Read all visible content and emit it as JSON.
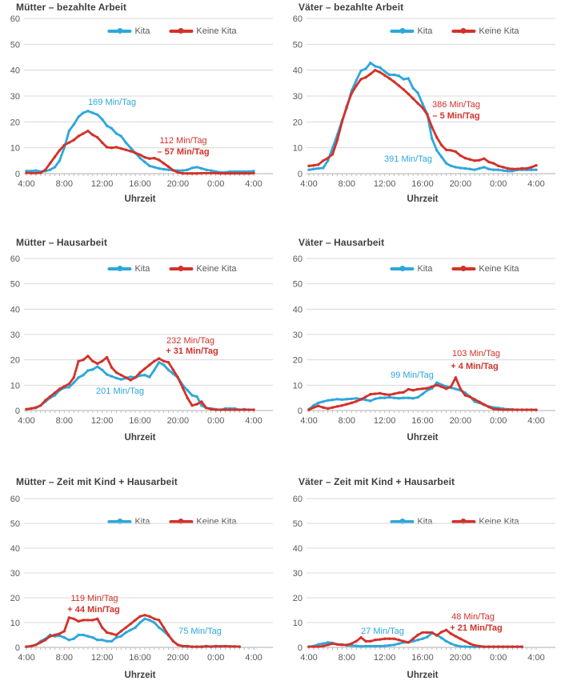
{
  "page": {
    "background": "#ffffff"
  },
  "colors": {
    "kita": "#2EA7DB",
    "keine_kita": "#D2322A",
    "gridline": "#D8D8D8",
    "axis_line": "#AFAFAF",
    "tick": "#BFBFBF",
    "label_text": "#595959",
    "title_text": "#3F3F3F"
  },
  "legend": {
    "kita": "Kita",
    "keine_kita": "Keine Kita"
  },
  "axis": {
    "x_label": "Uhrzeit",
    "x_tick_labels": [
      "4:00",
      "8:00",
      "12:00",
      "16:00",
      "20:00",
      "0:00",
      "4:00"
    ],
    "y_ticks": [
      0,
      10,
      20,
      30,
      40,
      50,
      60
    ],
    "y_max": 60,
    "x_points_per_label": 8,
    "x_resolution": "30min"
  },
  "chart_data": [
    {
      "type": "line",
      "title": "Mütter – bezahlte Arbeit",
      "ylim": [
        0,
        60
      ],
      "x_start": "4:00",
      "x_end": "4:00",
      "annotations": {
        "kita_total": "169 Min/Tag",
        "keine_kita_total": "112 Min/Tag",
        "difference": "– 57 Min/Tag"
      },
      "series": [
        {
          "name": "Kita",
          "color_key": "kita",
          "values": [
            1,
            1,
            1.2,
            0.8,
            1,
            1.5,
            2.5,
            5,
            10,
            16.5,
            19,
            22,
            23.5,
            24.2,
            23.5,
            22.8,
            21,
            18.5,
            17.5,
            15.5,
            14.5,
            12,
            10,
            8,
            6,
            4.5,
            3,
            2.5,
            2,
            1.7,
            1.5,
            1.3,
            1.2,
            1.2,
            1.5,
            2.2,
            2.5,
            2,
            1.5,
            1.2,
            0.8,
            0.5,
            0.5,
            0.8,
            0.8,
            0.8,
            0.8,
            0.8,
            1
          ]
        },
        {
          "name": "Keine Kita",
          "color_key": "keine_kita",
          "values": [
            0.3,
            0.2,
            0.2,
            0.3,
            1.5,
            4,
            6.5,
            9,
            11,
            12,
            13,
            14.5,
            15.5,
            16.5,
            15,
            14,
            12,
            10.2,
            10,
            10.2,
            9.7,
            9.2,
            8.7,
            8,
            7.3,
            6.3,
            5.8,
            6,
            5.3,
            4,
            2.7,
            1.3,
            0.5,
            0.1,
            0.1,
            0.1,
            0.1,
            0.2,
            0.2,
            0.2,
            0.2,
            0.1,
            0.1,
            0.1,
            0.1,
            0.1,
            0.1,
            0.1,
            0.2
          ]
        }
      ]
    },
    {
      "type": "line",
      "title": "Väter – bezahlte Arbeit",
      "ylim": [
        0,
        60
      ],
      "x_start": "4:00",
      "x_end": "4:00",
      "annotations": {
        "kita_total": "391 Min/Tag",
        "keine_kita_total": "386 Min/Tag",
        "difference": "– 5 Min/Tag"
      },
      "series": [
        {
          "name": "Kita",
          "color_key": "kita",
          "values": [
            1.5,
            1.8,
            2,
            2.2,
            5,
            10,
            15,
            20.5,
            25.5,
            32,
            36,
            39.8,
            40.5,
            42.8,
            41.5,
            41,
            39.5,
            38.2,
            38.2,
            37.8,
            36.5,
            36.8,
            33,
            31.2,
            27,
            23,
            13.5,
            9,
            6.5,
            4,
            3,
            2.5,
            2.2,
            2,
            1.8,
            1.5,
            2,
            2.5,
            1.8,
            1.5,
            1.5,
            1.2,
            1,
            1,
            1.5,
            1.5,
            1.5,
            1.5,
            1.5
          ]
        },
        {
          "name": "Keine Kita",
          "color_key": "keine_kita",
          "values": [
            3,
            3.2,
            3.5,
            5,
            6,
            7.5,
            13,
            20,
            26,
            31,
            34,
            36.5,
            37.2,
            38.5,
            40,
            39.2,
            38,
            36.8,
            35.5,
            34,
            32.5,
            30.8,
            29,
            27.2,
            25.5,
            22.8,
            18,
            14,
            11,
            9.2,
            9,
            8.5,
            7,
            6,
            5.5,
            5,
            5.2,
            5.8,
            4.5,
            4,
            3,
            2.5,
            2,
            1.8,
            1.8,
            2,
            2,
            2.5,
            3.2
          ]
        }
      ]
    },
    {
      "type": "line",
      "title": "Mütter – Hausarbeit",
      "ylim": [
        0,
        60
      ],
      "x_start": "4:00",
      "x_end": "4:00",
      "annotations": {
        "kita_total": "201 Min/Tag",
        "keine_kita_total": "232 Min/Tag",
        "difference": "+ 31 Min/Tag"
      },
      "series": [
        {
          "name": "Kita",
          "color_key": "kita",
          "values": [
            0.5,
            0.8,
            1,
            2,
            3.5,
            5,
            6,
            8,
            9,
            9.2,
            11,
            13,
            14,
            15.8,
            16.2,
            17.3,
            16,
            14.2,
            13.5,
            12.8,
            12.3,
            12.8,
            13.3,
            13,
            13.8,
            14,
            13.2,
            16,
            19,
            18,
            16,
            14.5,
            13,
            10,
            8,
            6,
            5.5,
            2,
            1,
            0.8,
            0.5,
            0.3,
            0.8,
            0.8,
            0.8,
            0.3,
            0.5,
            0.3,
            0.3
          ]
        },
        {
          "name": "Keine Kita",
          "color_key": "keine_kita",
          "values": [
            0.5,
            0.8,
            1.2,
            2,
            4,
            5.5,
            7,
            8.5,
            9.5,
            10.5,
            13,
            19.5,
            20,
            21.5,
            19.5,
            18.5,
            19.5,
            21,
            17,
            15,
            14,
            13,
            12,
            13,
            15,
            16.5,
            18,
            19.5,
            20.5,
            19.5,
            19,
            16,
            13,
            9,
            5,
            2,
            2.5,
            3.5,
            1,
            0.5,
            0.3,
            0.3,
            0.3,
            0.3,
            0.3,
            0.3,
            0.3,
            0.3,
            0.3
          ]
        }
      ]
    },
    {
      "type": "line",
      "title": "Väter – Hausarbeit",
      "ylim": [
        0,
        60
      ],
      "x_start": "4:00",
      "x_end": "4:00",
      "annotations": {
        "kita_total": "99 Min/Tag",
        "keine_kita_total": "103 Min/Tag",
        "difference": "+ 4 Min/Tag"
      },
      "series": [
        {
          "name": "Kita",
          "color_key": "kita",
          "values": [
            0.5,
            2,
            3,
            3.5,
            4,
            4.2,
            4.5,
            4.3,
            4.5,
            4.6,
            4.8,
            4.5,
            4.2,
            3.8,
            4.6,
            5,
            5,
            5.2,
            5,
            4.8,
            5,
            5,
            4.8,
            5.2,
            6.5,
            8,
            8.7,
            11,
            10.2,
            9.5,
            9,
            8.5,
            8,
            7,
            5.5,
            3.5,
            3,
            2.2,
            1.6,
            1.2,
            1,
            0.7,
            0.5,
            0.4,
            0.3,
            0.3,
            0.3,
            0.3,
            0.2
          ]
        },
        {
          "name": "Keine Kita",
          "color_key": "keine_kita",
          "values": [
            0.3,
            1.2,
            1.8,
            1.2,
            0.8,
            1.2,
            1.6,
            2,
            2.5,
            3,
            3.6,
            4.4,
            5.4,
            6.4,
            6.6,
            6.8,
            6.4,
            6.2,
            6.6,
            7,
            7.2,
            8.4,
            8,
            8.4,
            8.6,
            8.8,
            9.4,
            10,
            9.4,
            8.6,
            9.4,
            13,
            8.6,
            6,
            5.4,
            4.4,
            3.4,
            2.4,
            1.4,
            0.6,
            0.4,
            0.3,
            0.3,
            0.3,
            0.3,
            0.3,
            0.3,
            0.3,
            0.3
          ]
        }
      ]
    },
    {
      "type": "line",
      "title": "Mütter – Zeit mit Kind + Hausarbeit",
      "ylim": [
        0,
        60
      ],
      "x_start": "4:00",
      "x_end": "4:00",
      "annotations": {
        "kita_total": "75 Min/Tag",
        "keine_kita_total": "119 Min/Tag",
        "difference": "+ 44 Min/Tag"
      },
      "series": [
        {
          "name": "Kita",
          "color_key": "kita",
          "values": [
            0.3,
            0.5,
            1,
            2.5,
            3.5,
            5,
            4.5,
            4.7,
            4,
            3,
            3.5,
            5,
            5,
            4.5,
            4,
            3,
            3,
            2.5,
            2.5,
            4,
            4.5,
            6,
            7,
            8,
            10,
            11.5,
            11,
            10,
            8,
            6.5,
            4.8,
            2.5,
            1,
            0.5,
            0.3,
            0.2,
            0.2,
            0.2,
            0.3,
            0.3,
            0.3,
            0.4,
            0.4,
            0.3,
            0.3,
            0.3,
            null,
            null,
            null
          ]
        },
        {
          "name": "Keine Kita",
          "color_key": "keine_kita",
          "values": [
            0.3,
            0.5,
            1,
            2,
            3,
            4.5,
            5,
            5.5,
            6.5,
            12,
            11.5,
            10.5,
            11,
            11,
            11,
            11.5,
            8,
            6,
            5.5,
            5,
            6.5,
            8,
            9.5,
            11,
            12.5,
            13,
            12.5,
            11.5,
            11,
            8,
            5,
            2.5,
            1,
            0.5,
            0.5,
            0.3,
            0.3,
            0.3,
            0.5,
            0.3,
            0.5,
            0.4,
            0.5,
            0.4,
            0.4,
            0.3,
            null,
            null,
            null
          ]
        }
      ]
    },
    {
      "type": "line",
      "title": "Väter – Zeit mit Kind + Hausarbeit",
      "ylim": [
        0,
        60
      ],
      "x_start": "4:00",
      "x_end": "4:00",
      "annotations": {
        "kita_total": "27 Min/Tag",
        "keine_kita_total": "48 Min/Tag",
        "difference": "+ 21 Min/Tag"
      },
      "series": [
        {
          "name": "Kita",
          "color_key": "kita",
          "values": [
            0.3,
            0.5,
            1.2,
            1.5,
            2,
            1.8,
            1.2,
            1.2,
            0.8,
            0.7,
            0.6,
            0.4,
            0.5,
            0.5,
            0.5,
            0.5,
            0.6,
            0.8,
            1,
            1.5,
            2,
            2,
            2.5,
            3,
            3.5,
            4.2,
            5.8,
            5,
            3.8,
            2.5,
            1.5,
            0.8,
            0.4,
            0.3,
            0.2,
            0.2,
            0.2,
            0.2,
            0.2,
            0.2,
            0.2,
            0.2,
            0.2,
            0.2,
            0.2,
            0.2,
            null,
            null,
            null
          ]
        },
        {
          "name": "Keine Kita",
          "color_key": "keine_kita",
          "values": [
            0.3,
            0.3,
            0.3,
            0.5,
            1,
            1.5,
            1.2,
            1,
            1,
            1.5,
            2.5,
            4,
            2.5,
            2.5,
            3,
            3.2,
            3.5,
            3.5,
            3.5,
            3,
            2.5,
            2,
            3.5,
            5,
            6,
            6,
            6,
            4.8,
            6.2,
            7,
            5.5,
            4.5,
            3.5,
            2.5,
            1.5,
            0.8,
            0.5,
            0.3,
            0.3,
            0.3,
            0.3,
            0.3,
            0.3,
            0.3,
            0.3,
            0.3,
            null,
            null,
            null
          ]
        }
      ]
    }
  ]
}
